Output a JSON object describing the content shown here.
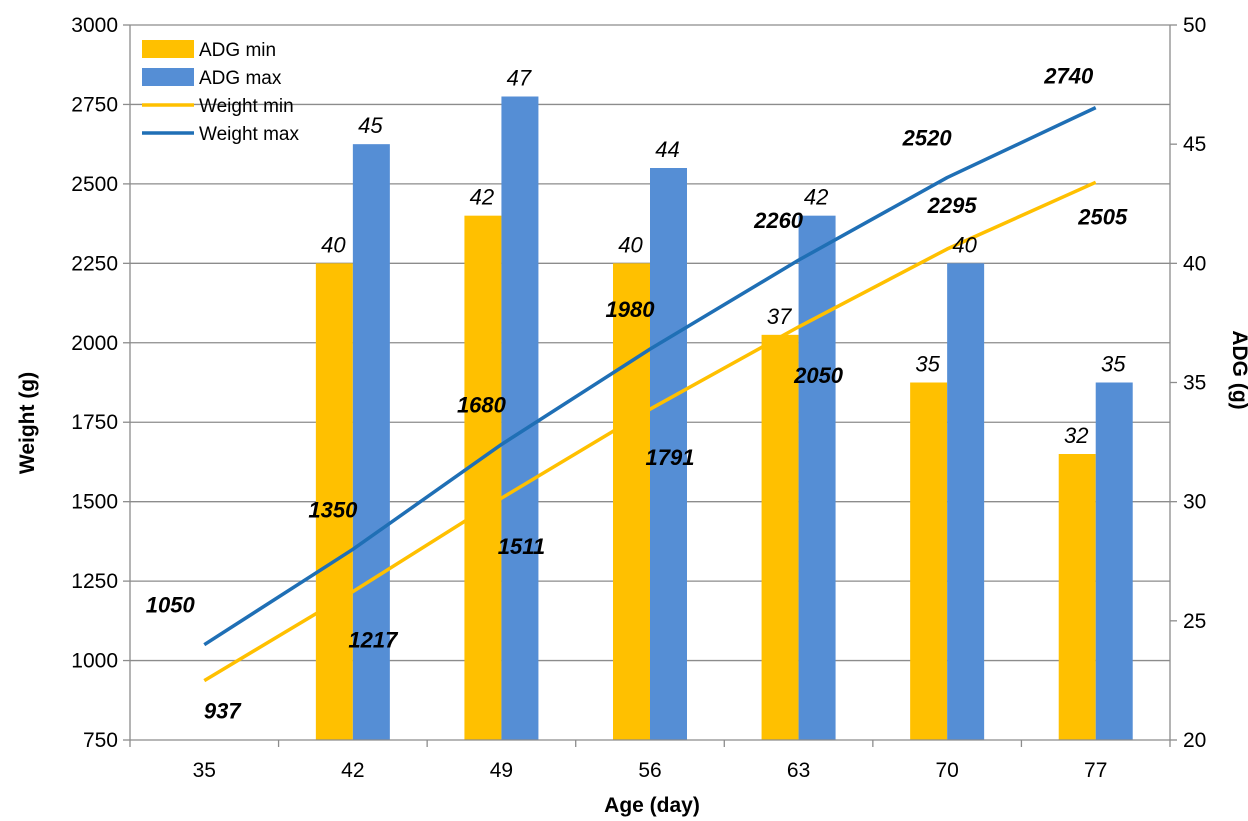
{
  "chart_data": {
    "type": "bar",
    "categories": [
      "35",
      "42",
      "49",
      "56",
      "63",
      "70",
      "77"
    ],
    "xlabel": "Age  (day)",
    "ylabel": "Weight  (g)",
    "y2label": "ADG  (g)",
    "ylim": [
      750,
      3000
    ],
    "yticks": [
      "750",
      "1000",
      "1250",
      "1500",
      "1750",
      "2000",
      "2250",
      "2500",
      "2750",
      "3000"
    ],
    "y2lim": [
      20,
      50
    ],
    "y2ticks": [
      "20",
      "25",
      "30",
      "35",
      "40",
      "45",
      "50"
    ],
    "grid": true,
    "legend_position": "top-left",
    "bar_series": [
      {
        "name": "ADG min",
        "color": "#FFC000",
        "axis": "right",
        "values": [
          null,
          40,
          42,
          40,
          37,
          35,
          32
        ]
      },
      {
        "name": "ADG max",
        "color": "#558ED5",
        "axis": "right",
        "values": [
          null,
          45,
          47,
          44,
          42,
          40,
          35
        ]
      }
    ],
    "line_series": [
      {
        "name": "Weight min",
        "color": "#FFC000",
        "axis": "left",
        "values": [
          937,
          1217,
          1511,
          1791,
          2050,
          2295,
          2505
        ]
      },
      {
        "name": "Weight max",
        "color": "#1F6FB5",
        "axis": "left",
        "values": [
          1050,
          1350,
          1680,
          1980,
          2260,
          2520,
          2740
        ]
      }
    ]
  }
}
